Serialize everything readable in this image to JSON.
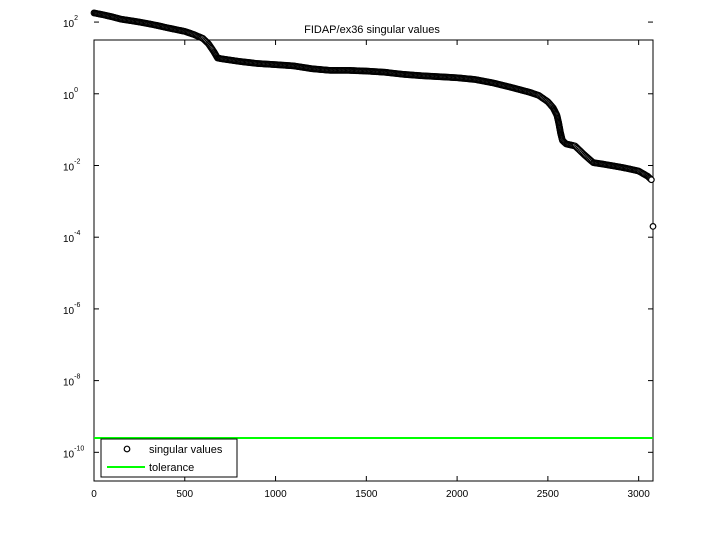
{
  "chart_data": {
    "type": "line",
    "title": "FIDAP/ex36 singular values",
    "xlabel": "",
    "ylabel": "",
    "xlim": [
      0,
      3079
    ],
    "ylim_log10": [
      -10.8,
      1.5
    ],
    "yscale": "log",
    "x_ticks": [
      0,
      500,
      1000,
      1500,
      2000,
      2500,
      3000
    ],
    "y_ticks": [
      {
        "base": "10",
        "exp": "2",
        "log10": 2
      },
      {
        "base": "10",
        "exp": "0",
        "log10": 0
      },
      {
        "base": "10",
        "exp": "-2",
        "log10": -2
      },
      {
        "base": "10",
        "exp": "-4",
        "log10": -4
      },
      {
        "base": "10",
        "exp": "-6",
        "log10": -6
      },
      {
        "base": "10",
        "exp": "-8",
        "log10": -8
      },
      {
        "base": "10",
        "exp": "-10",
        "log10": -10
      }
    ],
    "grid": false,
    "legend_position": "bottom-left",
    "series": [
      {
        "name": "singular values",
        "marker": "circle",
        "color": "#000000",
        "points": [
          [
            0,
            180
          ],
          [
            50,
            160
          ],
          [
            100,
            140
          ],
          [
            150,
            120
          ],
          [
            200,
            110
          ],
          [
            250,
            100
          ],
          [
            300,
            90
          ],
          [
            350,
            80
          ],
          [
            400,
            70
          ],
          [
            450,
            62
          ],
          [
            500,
            55
          ],
          [
            550,
            45
          ],
          [
            600,
            35
          ],
          [
            630,
            25
          ],
          [
            660,
            15
          ],
          [
            680,
            10
          ],
          [
            700,
            9.5
          ],
          [
            800,
            8
          ],
          [
            900,
            7
          ],
          [
            1000,
            6.5
          ],
          [
            1100,
            6
          ],
          [
            1200,
            5
          ],
          [
            1300,
            4.5
          ],
          [
            1400,
            4.5
          ],
          [
            1500,
            4.3
          ],
          [
            1600,
            4
          ],
          [
            1700,
            3.5
          ],
          [
            1800,
            3.2
          ],
          [
            1900,
            3
          ],
          [
            2000,
            2.8
          ],
          [
            2100,
            2.5
          ],
          [
            2200,
            2
          ],
          [
            2300,
            1.5
          ],
          [
            2400,
            1.1
          ],
          [
            2450,
            0.9
          ],
          [
            2500,
            0.6
          ],
          [
            2530,
            0.4
          ],
          [
            2550,
            0.25
          ],
          [
            2560,
            0.15
          ],
          [
            2570,
            0.08
          ],
          [
            2580,
            0.05
          ],
          [
            2600,
            0.04
          ],
          [
            2650,
            0.035
          ],
          [
            2700,
            0.02
          ],
          [
            2750,
            0.012
          ],
          [
            2800,
            0.011
          ],
          [
            2900,
            0.009
          ],
          [
            2950,
            0.008
          ],
          [
            3000,
            0.007
          ],
          [
            3050,
            0.005
          ],
          [
            3070,
            0.004
          ],
          [
            3079,
            0.0002
          ]
        ]
      },
      {
        "name": "tolerance",
        "marker": "none",
        "color": "#00ff00",
        "points": [
          [
            0,
            2.5e-10
          ],
          [
            3079,
            2.5e-10
          ]
        ]
      }
    ]
  }
}
